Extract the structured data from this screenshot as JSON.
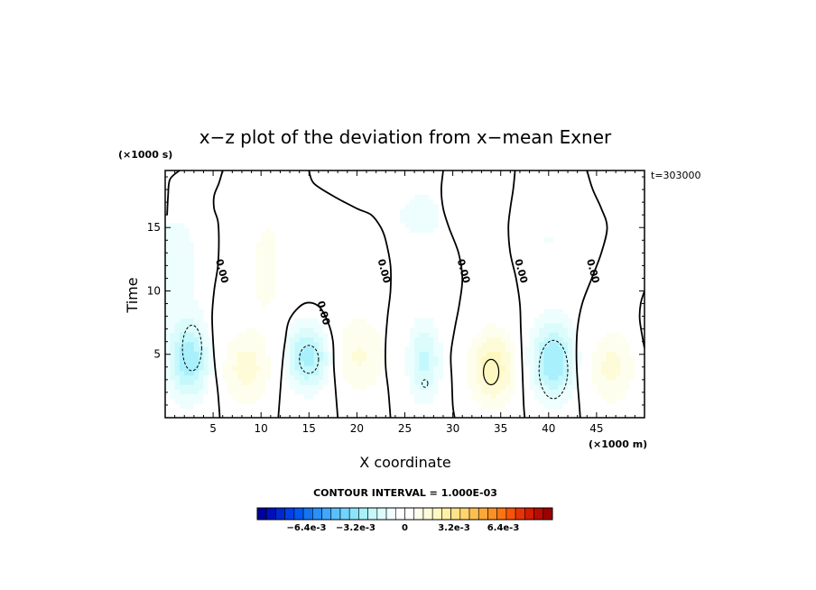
{
  "chart_data": {
    "type": "heatmap",
    "title": "x−z plot of the deviation from x−mean Exner",
    "xlabel": "X coordinate",
    "ylabel": "Time",
    "x_unit": "(×1000 m)",
    "y_unit": "(×1000 s)",
    "time_label": "t=303000",
    "xlim": [
      0,
      50
    ],
    "ylim": [
      0,
      19.5
    ],
    "x_ticks": [
      5,
      10,
      15,
      20,
      25,
      30,
      35,
      40,
      45
    ],
    "y_ticks": [
      5,
      10,
      15
    ],
    "contour_interval_text": "CONTOUR INTERVAL = 1.000E-03",
    "zero_contour_label": "0.00",
    "colorbar": {
      "vmin": -0.0096,
      "vmax": 0.0096,
      "tick_labels": [
        "-6.4e-3",
        "-3.2e-3",
        "0",
        "3.2e-3",
        "6.4e-3"
      ],
      "tick_values": [
        -0.0064,
        -0.0032,
        0,
        0.0032,
        0.0064
      ]
    },
    "zero_contours": [
      [
        [
          1.5,
          19.5
        ],
        [
          0.5,
          18.8
        ],
        [
          0.3,
          17.5
        ],
        [
          0.2,
          16.0
        ]
      ],
      [
        [
          6.0,
          19.5
        ],
        [
          5.6,
          18.5
        ],
        [
          5.1,
          17.5
        ],
        [
          5.1,
          16.5
        ],
        [
          5.5,
          15.5
        ],
        [
          5.6,
          14.0
        ],
        [
          5.5,
          12.0
        ],
        [
          5.1,
          10.0
        ],
        [
          4.9,
          8.0
        ],
        [
          5.0,
          6.0
        ],
        [
          5.2,
          4.0
        ],
        [
          5.5,
          2.0
        ],
        [
          5.7,
          0.0
        ]
      ],
      [
        [
          15.0,
          19.5
        ],
        [
          15.5,
          18.5
        ],
        [
          17.5,
          17.5
        ],
        [
          20.0,
          16.5
        ],
        [
          21.5,
          16.0
        ],
        [
          22.5,
          15.0
        ],
        [
          23.0,
          14.0
        ],
        [
          23.5,
          12.0
        ],
        [
          23.5,
          10.0
        ],
        [
          23.2,
          8.0
        ],
        [
          23.0,
          6.0
        ],
        [
          23.0,
          4.0
        ],
        [
          23.3,
          2.0
        ],
        [
          23.5,
          0.0
        ]
      ],
      [
        [
          11.8,
          0.0
        ],
        [
          12.0,
          2.0
        ],
        [
          12.2,
          4.0
        ],
        [
          12.5,
          6.0
        ],
        [
          13.0,
          7.8
        ],
        [
          14.5,
          9.0
        ],
        [
          16.0,
          8.8
        ],
        [
          17.0,
          7.5
        ],
        [
          17.5,
          6.0
        ],
        [
          17.6,
          4.0
        ],
        [
          17.8,
          2.0
        ],
        [
          18.0,
          0.0
        ]
      ],
      [
        [
          29.0,
          19.5
        ],
        [
          28.8,
          18.0
        ],
        [
          29.0,
          16.5
        ],
        [
          29.6,
          15.0
        ],
        [
          30.6,
          13.0
        ],
        [
          31.0,
          11.0
        ],
        [
          30.7,
          9.0
        ],
        [
          30.2,
          7.0
        ],
        [
          29.8,
          5.0
        ],
        [
          29.9,
          3.0
        ],
        [
          30.0,
          1.0
        ],
        [
          30.2,
          0.0
        ]
      ],
      [
        [
          36.5,
          19.5
        ],
        [
          36.3,
          18.0
        ],
        [
          36.0,
          16.5
        ],
        [
          35.8,
          15.0
        ],
        [
          36.0,
          13.0
        ],
        [
          36.6,
          11.0
        ],
        [
          37.0,
          9.0
        ],
        [
          37.1,
          7.0
        ],
        [
          37.2,
          5.0
        ],
        [
          37.3,
          3.0
        ],
        [
          37.4,
          1.0
        ],
        [
          37.5,
          0.0
        ]
      ],
      [
        [
          44.0,
          19.5
        ],
        [
          44.6,
          18.0
        ],
        [
          45.5,
          16.5
        ],
        [
          46.1,
          15.0
        ],
        [
          45.5,
          13.0
        ],
        [
          44.5,
          11.0
        ],
        [
          43.5,
          9.0
        ],
        [
          43.0,
          7.0
        ],
        [
          42.9,
          5.0
        ],
        [
          43.0,
          3.0
        ],
        [
          43.2,
          1.0
        ],
        [
          43.3,
          0.0
        ]
      ],
      [
        [
          50.0,
          10.0
        ],
        [
          49.6,
          9.0
        ],
        [
          49.5,
          7.8
        ],
        [
          49.8,
          6.3
        ],
        [
          50.0,
          5.5
        ]
      ]
    ],
    "zero_label_positions": [
      [
        5.6,
        11.5
      ],
      [
        16.2,
        8.2
      ],
      [
        22.5,
        11.5
      ],
      [
        30.8,
        11.5
      ],
      [
        36.8,
        11.5
      ],
      [
        44.3,
        11.5
      ]
    ],
    "negative_contours": [
      {
        "cx": 2.8,
        "cy": 5.5,
        "rx": 1.0,
        "ry": 1.8
      },
      {
        "cx": 15.0,
        "cy": 4.6,
        "rx": 1.0,
        "ry": 1.1
      },
      {
        "cx": 40.5,
        "cy": 3.8,
        "rx": 1.5,
        "ry": 2.3
      },
      {
        "cx": 27.1,
        "cy": 2.7,
        "rx": 0.3,
        "ry": 0.3
      }
    ],
    "positive_contours": [
      {
        "cx": 34.0,
        "cy": 3.6,
        "rx": 0.8,
        "ry": 1.0
      }
    ],
    "anomaly_centers": [
      {
        "x": 2.5,
        "y": 4.5,
        "value": -0.0028,
        "sx": 2.2,
        "sy": 3.0
      },
      {
        "x": 1.0,
        "y": 12.0,
        "value": -0.001,
        "sx": 3.0,
        "sy": 5.0
      },
      {
        "x": 8.5,
        "y": 4.0,
        "value": 0.0015,
        "sx": 2.8,
        "sy": 3.0
      },
      {
        "x": 10.5,
        "y": 11.0,
        "value": 0.0009,
        "sx": 1.5,
        "sy": 3.0
      },
      {
        "x": 15.0,
        "y": 4.8,
        "value": -0.0028,
        "sx": 2.5,
        "sy": 2.6
      },
      {
        "x": 20.0,
        "y": 5.0,
        "value": 0.0013,
        "sx": 3.2,
        "sy": 3.2
      },
      {
        "x": 27.0,
        "y": 4.5,
        "value": -0.002,
        "sx": 1.8,
        "sy": 3.2
      },
      {
        "x": 34.2,
        "y": 4.0,
        "value": 0.0022,
        "sx": 2.5,
        "sy": 3.0
      },
      {
        "x": 40.5,
        "y": 4.5,
        "value": -0.003,
        "sx": 2.5,
        "sy": 3.0
      },
      {
        "x": 46.5,
        "y": 4.0,
        "value": 0.0014,
        "sx": 2.6,
        "sy": 3.0
      },
      {
        "x": 27.0,
        "y": 16.0,
        "value": -0.0007,
        "sx": 6.0,
        "sy": 4.0
      },
      {
        "x": 40.0,
        "y": 14.0,
        "value": -0.0006,
        "sx": 5.0,
        "sy": 5.0
      },
      {
        "x": 12.0,
        "y": 16.0,
        "value": 0.0005,
        "sx": 5.0,
        "sy": 4.0
      },
      {
        "x": 33.0,
        "y": 16.0,
        "value": 0.0004,
        "sx": 3.0,
        "sy": 4.0
      },
      {
        "x": 48.0,
        "y": 16.0,
        "value": 0.0003,
        "sx": 3.0,
        "sy": 4.0
      }
    ]
  },
  "colors": {
    "colorbar": [
      "#00009c",
      "#0010b8",
      "#0028d0",
      "#0040e4",
      "#0058f0",
      "#1474f4",
      "#2890f8",
      "#40a8fc",
      "#58c0fc",
      "#70d4fc",
      "#8ce4fc",
      "#a8f0fc",
      "#c4f8fc",
      "#dcfcfc",
      "#eefefe",
      "#ffffff",
      "#ffffff",
      "#fefeee",
      "#fefcd8",
      "#fef8c0",
      "#fef0a4",
      "#fee488",
      "#fed46c",
      "#fcc050",
      "#fca838",
      "#fc9024",
      "#fc7414",
      "#f85408",
      "#e83404",
      "#d41c00",
      "#b80c00",
      "#9c0000"
    ]
  }
}
